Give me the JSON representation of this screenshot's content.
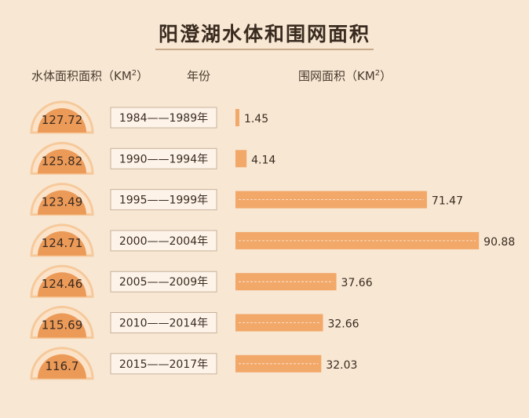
{
  "chart_data": {
    "type": "bar",
    "title": "阳澄湖水体和围网面积",
    "headers": {
      "water_area": "水体面积面积（KM",
      "year": "年份",
      "net_area": "围网面积（KM",
      "unit_power": "2",
      "close_paren": "）"
    },
    "categories": [
      "1984——1989年",
      "1990——1994年",
      "1995——1999年",
      "2000——2004年",
      "2005——2009年",
      "2010——2014年",
      "2015——2017年"
    ],
    "water_area_labels": [
      "127.72",
      "125.82",
      "123.49",
      "124.71",
      "124.46",
      "115.69",
      "116.7"
    ],
    "water_area": [
      127.72,
      125.82,
      123.49,
      124.71,
      124.46,
      115.69,
      116.7
    ],
    "series": [
      {
        "values": [
          1.45,
          4.14,
          71.47,
          90.88,
          37.66,
          32.66,
          32.03
        ]
      }
    ],
    "value_labels": [
      "1.45",
      "4.14",
      "71.47",
      "90.88",
      "37.66",
      "32.66",
      "32.03"
    ],
    "xlim": [
      0,
      92
    ],
    "grid": false,
    "colors": {
      "bar": "#f2a869",
      "dome": "#ec9a58",
      "dome_ring": "#f6c99b",
      "box": "#fdf3e8",
      "box_border": "#c9b29a"
    }
  }
}
